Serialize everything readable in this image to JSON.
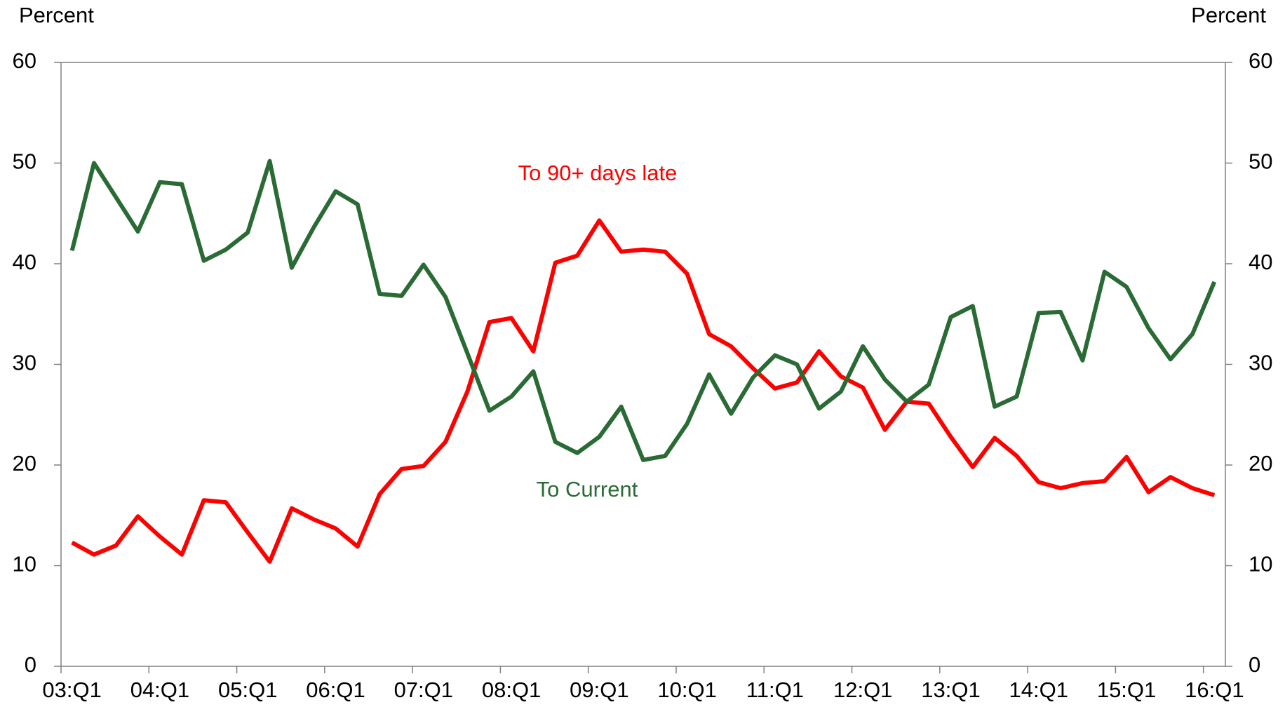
{
  "chart_data": {
    "type": "line",
    "ylabel": "Percent",
    "y2label": "Percent",
    "categories": [
      "03:Q1",
      null,
      null,
      null,
      "04:Q1",
      null,
      null,
      null,
      "05:Q1",
      null,
      null,
      null,
      "06:Q1",
      null,
      null,
      null,
      "07:Q1",
      null,
      null,
      null,
      "08:Q1",
      null,
      null,
      null,
      "09:Q1",
      null,
      null,
      null,
      "10:Q1",
      null,
      null,
      null,
      "11:Q1",
      null,
      null,
      null,
      "12:Q1",
      null,
      null,
      null,
      "13:Q1",
      null,
      null,
      null,
      "14:Q1",
      null,
      null,
      null,
      "15:Q1",
      null,
      null,
      null,
      "16:Q1"
    ],
    "series": [
      {
        "name": "To 90+ days late",
        "color": "#ff0000",
        "values": [
          12.3,
          11.1,
          12.0,
          14.9,
          12.9,
          11.1,
          16.5,
          16.3,
          13.3,
          10.4,
          15.7,
          14.6,
          13.7,
          11.9,
          17.1,
          19.6,
          19.9,
          22.3,
          27.3,
          34.2,
          34.6,
          31.3,
          40.1,
          40.8,
          44.3,
          41.2,
          41.4,
          41.2,
          39.0,
          33.0,
          31.8,
          29.6,
          27.6,
          28.2,
          31.3,
          28.8,
          27.7,
          23.5,
          26.3,
          26.1,
          22.8,
          19.8,
          22.7,
          20.9,
          18.3,
          17.7,
          18.2,
          18.4,
          20.8,
          17.3,
          18.8,
          17.7,
          17.0
        ]
      },
      {
        "name": "To Current",
        "color": "#2a6b35",
        "values": [
          41.3,
          50.0,
          46.6,
          43.2,
          48.1,
          47.9,
          40.3,
          41.4,
          43.1,
          50.2,
          39.6,
          43.6,
          47.2,
          45.9,
          37.0,
          36.8,
          39.9,
          36.7,
          31.1,
          25.4,
          26.8,
          29.3,
          22.3,
          21.2,
          22.8,
          25.8,
          20.5,
          20.9,
          24.1,
          29.0,
          25.1,
          28.7,
          30.9,
          30.0,
          25.6,
          27.3,
          31.8,
          28.5,
          26.3,
          28.0,
          34.7,
          35.8,
          25.8,
          26.8,
          35.1,
          35.2,
          30.4,
          39.2,
          37.7,
          33.6,
          30.5,
          33.0,
          38.2
        ]
      }
    ],
    "ylim": [
      0,
      60
    ],
    "yticks": [
      0,
      10,
      20,
      30,
      40,
      50,
      60
    ],
    "y2lim": [
      0,
      60
    ],
    "y2ticks": [
      0,
      10,
      20,
      30,
      40,
      50,
      60
    ],
    "grid": false
  }
}
